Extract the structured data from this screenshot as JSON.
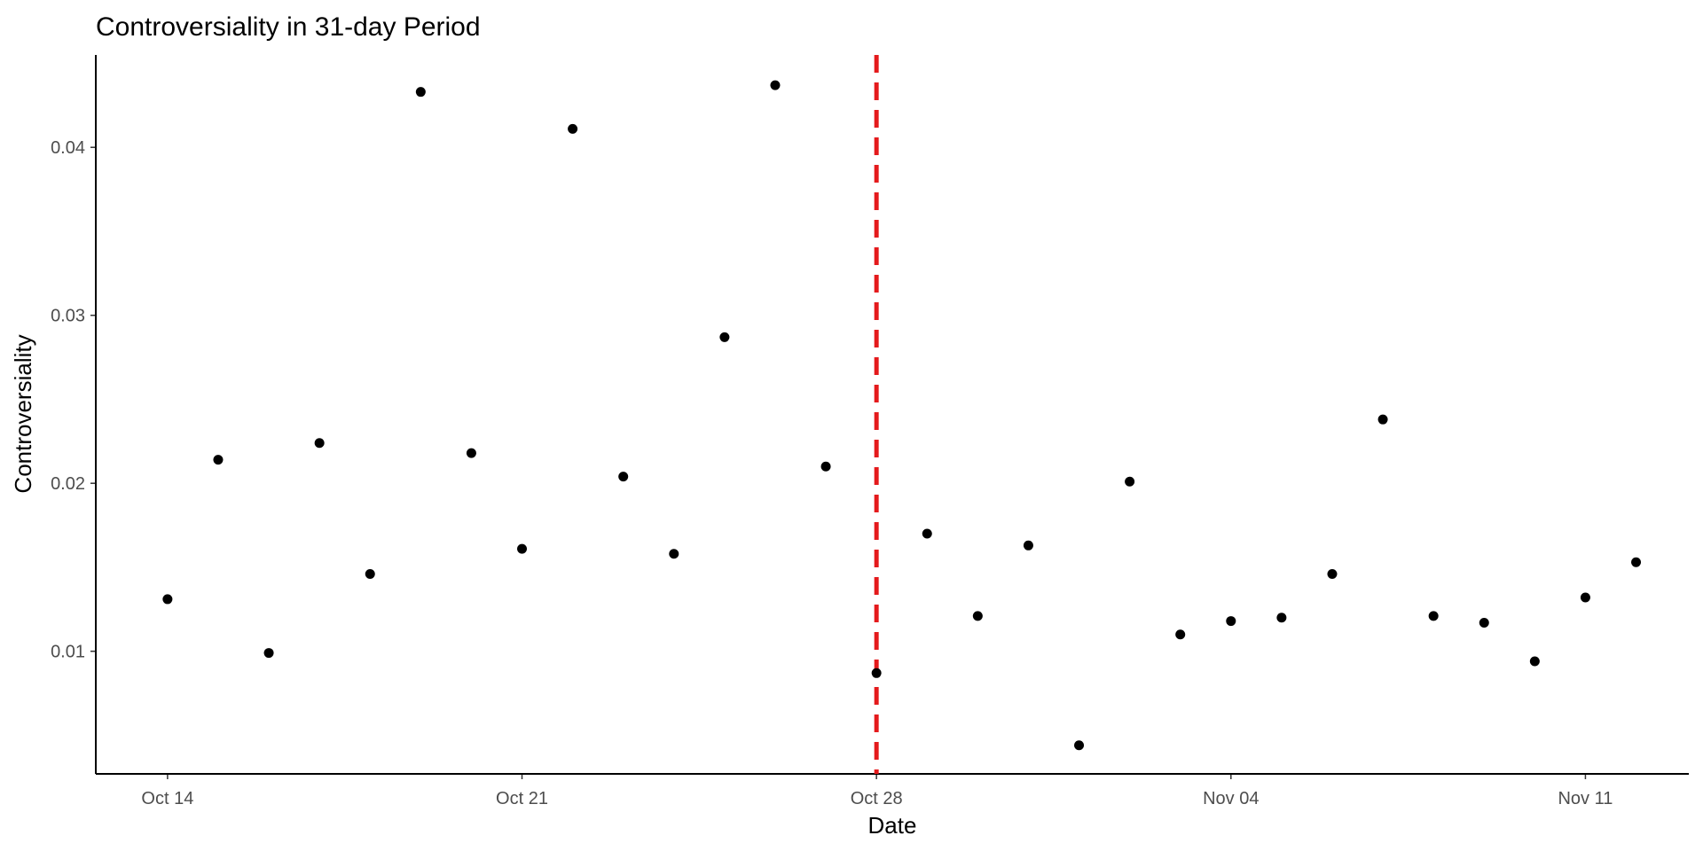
{
  "chart_data": {
    "type": "scatter",
    "title": "Controversiality in 31-day Period",
    "xlabel": "Date",
    "ylabel": "Controversiality",
    "x_ticks": [
      "Oct 14",
      "Oct 21",
      "Oct 28",
      "Nov 04",
      "Nov 11"
    ],
    "x_tick_dates": [
      "2018-10-14",
      "2018-10-21",
      "2018-10-28",
      "2018-11-04",
      "2018-11-11"
    ],
    "y_ticks": [
      "0.01",
      "0.02",
      "0.03",
      "0.04"
    ],
    "y_tick_values": [
      0.01,
      0.02,
      0.03,
      0.04
    ],
    "xlim": [
      "2018-10-12 14:00",
      "2018-11-13 01:00"
    ],
    "ylim": [
      0.0027,
      0.0455
    ],
    "grid": false,
    "point_color": "#000000",
    "reference_line": {
      "x": "2018-10-28",
      "color": "#e41a1c",
      "style": "dashed"
    },
    "series": [
      {
        "x": [
          "2018-10-14",
          "2018-10-15",
          "2018-10-16",
          "2018-10-17",
          "2018-10-18",
          "2018-10-19",
          "2018-10-20",
          "2018-10-21",
          "2018-10-22",
          "2018-10-23",
          "2018-10-24",
          "2018-10-25",
          "2018-10-26",
          "2018-10-27",
          "2018-10-28",
          "2018-10-29",
          "2018-10-30",
          "2018-10-31",
          "2018-11-01",
          "2018-11-02",
          "2018-11-03",
          "2018-11-04",
          "2018-11-05",
          "2018-11-06",
          "2018-11-07",
          "2018-11-08",
          "2018-11-09",
          "2018-11-10",
          "2018-11-11",
          "2018-11-12"
        ],
        "y": [
          0.0131,
          0.0214,
          0.0099,
          0.0224,
          0.0146,
          0.0433,
          0.0218,
          0.0161,
          0.0411,
          0.0204,
          0.0158,
          0.0287,
          0.0437,
          0.021,
          0.0087,
          0.017,
          0.0121,
          0.0163,
          0.0044,
          0.0201,
          0.011,
          0.0118,
          0.012,
          0.0146,
          0.0238,
          0.0121,
          0.0117,
          0.0094,
          0.0132,
          0.0153
        ]
      }
    ]
  }
}
